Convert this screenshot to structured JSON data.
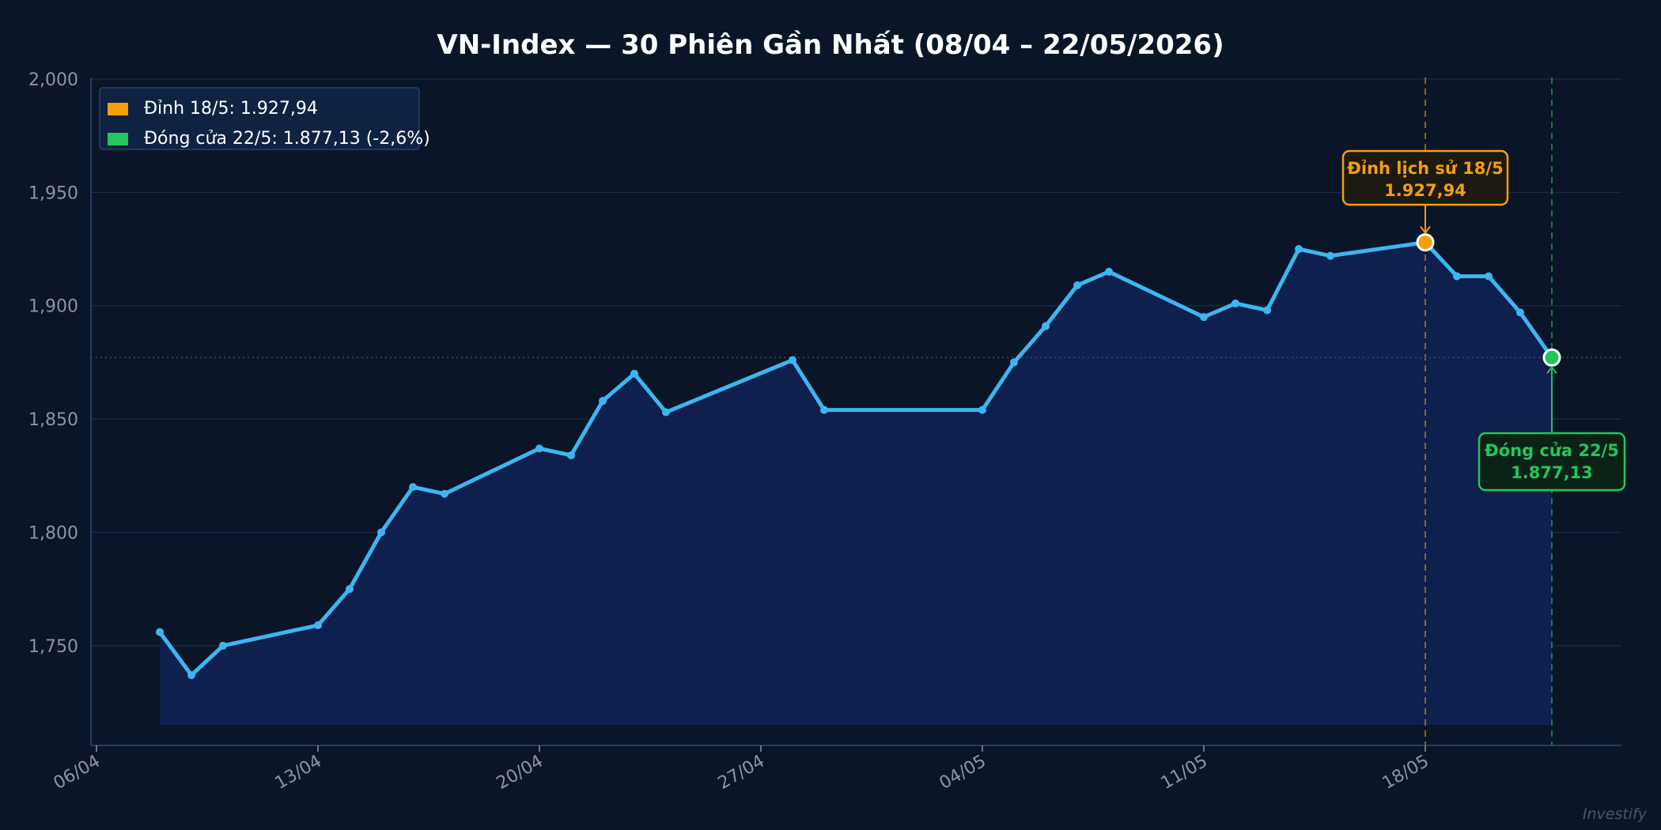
{
  "chart_data": {
    "type": "line",
    "title": "VN-Index — 30 Phiên Gần Nhất (08/04 – 22/05/2026)",
    "xlabel": "",
    "ylabel": "",
    "ylim": [
      1706,
      2000
    ],
    "yticks": [
      "1,750",
      "1,800",
      "1,850",
      "1,900",
      "1,950",
      "2,000"
    ],
    "xticks": [
      "06/04",
      "13/04",
      "20/04",
      "27/04",
      "04/05",
      "11/05",
      "18/05"
    ],
    "grid": true,
    "legend_position": "top-left",
    "series": [
      {
        "x": [
          "08/04",
          "09/04",
          "10/04",
          "13/04",
          "14/04",
          "15/04",
          "16/04",
          "17/04",
          "20/04",
          "21/04",
          "22/04",
          "23/04",
          "24/04",
          "28/04",
          "29/04",
          "04/05",
          "05/05",
          "06/05",
          "07/05",
          "08/05",
          "11/05",
          "12/05",
          "13/05",
          "14/05",
          "15/05",
          "18/05",
          "19/05",
          "20/05",
          "21/05",
          "22/05"
        ],
        "values": [
          1756,
          1737,
          1750,
          1759,
          1775,
          1800,
          1820,
          1817,
          1837,
          1834,
          1858,
          1870,
          1853,
          1876,
          1854,
          1854,
          1875,
          1891,
          1909,
          1915,
          1895,
          1901,
          1898,
          1925,
          1922,
          1927.94,
          1913,
          1913,
          1897,
          1877.13
        ]
      }
    ],
    "legend": [
      {
        "label": "Đỉnh 18/5: 1.927,94",
        "color": "#f59e0b"
      },
      {
        "label": "Đóng cửa 22/5: 1.877,13 (-2,6%)",
        "color": "#22c55e"
      }
    ],
    "annotations": [
      {
        "line1": "Đỉnh lịch sử 18/5",
        "line2": "1.927,94",
        "x": "18/05",
        "y": 1927.94,
        "color": "#f59e0b"
      },
      {
        "line1": "Đóng cửa 22/5",
        "line2": "1.877,13",
        "x": "22/05",
        "y": 1877.13,
        "color": "#22c55e"
      }
    ]
  },
  "colors": {
    "background": "#0a1628",
    "line": "#3db5f0",
    "fill": "#0f1f4e",
    "grid": "#1a2a48",
    "peak": "#f59e0b",
    "close": "#22c55e"
  },
  "watermark": "Investify"
}
